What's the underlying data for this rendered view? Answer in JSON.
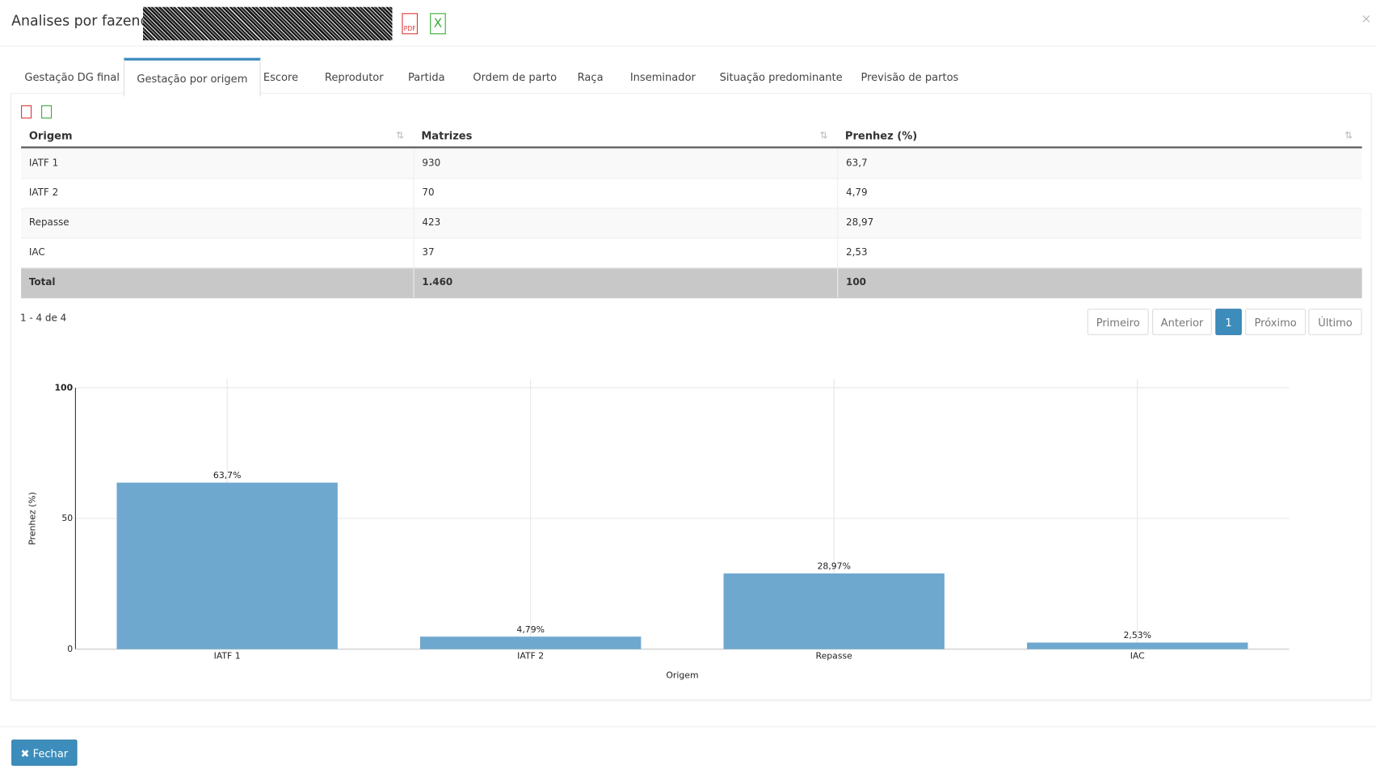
{
  "header": {
    "title": "Analises por fazendas"
  },
  "tabs": [
    "Gestação DG final",
    "Gestação por origem",
    "Escore",
    "Reprodutor",
    "Partida",
    "Ordem de parto",
    "Raça",
    "Inseminador",
    "Situação predominante",
    "Previsão de partos"
  ],
  "table": {
    "columns": [
      "Origem",
      "Matrizes",
      "Prenhez (%)"
    ],
    "rows": [
      [
        "IATF 1",
        "930",
        "63,7"
      ],
      [
        "IATF 2",
        "70",
        "4,79"
      ],
      [
        "Repasse",
        "423",
        "28,97"
      ],
      [
        "IAC",
        "37",
        "2,53"
      ]
    ],
    "total": [
      "Total",
      "1.460",
      "100"
    ]
  },
  "pagination": {
    "summary": "1 - 4 de 4",
    "buttons": [
      "Primeiro",
      "Anterior",
      "1",
      "Próximo",
      "Último"
    ]
  },
  "chart_data": {
    "type": "bar",
    "x_label": "Origem",
    "y_label": "Prenhez (%)",
    "categories": [
      "IATF 1",
      "IATF 2",
      "Repasse",
      "IAC"
    ],
    "values": [
      63.7,
      4.79,
      28.97,
      2.53
    ],
    "value_labels": [
      "63,7%",
      "4,79%",
      "28,97%",
      "2,53%"
    ],
    "color": "#6fa8cf",
    "ylim": [
      0,
      100
    ],
    "yticks": [
      0,
      50,
      100
    ],
    "grid": true
  },
  "footer": {
    "close": "✖ Fechar"
  }
}
